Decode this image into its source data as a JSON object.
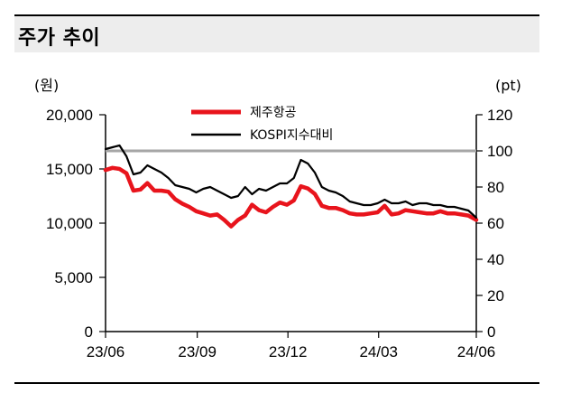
{
  "title": "주가 추이",
  "chart_data": {
    "type": "line",
    "left_axis": {
      "unit": "(원)",
      "ylim": [
        0,
        20000
      ],
      "ticks": [
        "0",
        "5,000",
        "10,000",
        "15,000",
        "20,000"
      ],
      "tick_values": [
        0,
        5000,
        10000,
        15000,
        20000
      ]
    },
    "right_axis": {
      "unit": "(pt)",
      "ylim": [
        0,
        120
      ],
      "ticks": [
        "0",
        "20",
        "40",
        "60",
        "80",
        "100",
        "120"
      ],
      "tick_values": [
        0,
        20,
        40,
        60,
        80,
        100,
        120
      ]
    },
    "x_ticks": [
      "23/06",
      "23/09",
      "23/12",
      "24/03",
      "24/06"
    ],
    "x_tick_values": [
      "2023-06",
      "2023-09",
      "2023-12",
      "2024-03",
      "2024-06"
    ],
    "reference_line": {
      "axis": "right",
      "value": 100,
      "color": "#a6a6a6"
    },
    "legend": {
      "position": "top-center"
    },
    "series": [
      {
        "name": "제주항공",
        "axis": "left",
        "color": "#e8141c",
        "x": [
          "2023-06-01",
          "2023-06-08",
          "2023-06-15",
          "2023-06-22",
          "2023-06-29",
          "2023-07-06",
          "2023-07-13",
          "2023-07-20",
          "2023-07-27",
          "2023-08-03",
          "2023-08-10",
          "2023-08-17",
          "2023-08-24",
          "2023-08-31",
          "2023-09-07",
          "2023-09-14",
          "2023-09-21",
          "2023-09-28",
          "2023-10-05",
          "2023-10-12",
          "2023-10-19",
          "2023-10-26",
          "2023-11-02",
          "2023-11-09",
          "2023-11-16",
          "2023-11-23",
          "2023-11-30",
          "2023-12-07",
          "2023-12-14",
          "2023-12-21",
          "2023-12-28",
          "2024-01-04",
          "2024-01-11",
          "2024-01-18",
          "2024-01-25",
          "2024-02-01",
          "2024-02-08",
          "2024-02-15",
          "2024-02-22",
          "2024-02-29",
          "2024-03-07",
          "2024-03-14",
          "2024-03-21",
          "2024-03-28",
          "2024-04-04",
          "2024-04-11",
          "2024-04-18",
          "2024-04-25",
          "2024-05-02",
          "2024-05-09",
          "2024-05-16",
          "2024-05-23",
          "2024-05-30",
          "2024-06-07"
        ],
        "values": [
          14900,
          15100,
          15000,
          14600,
          13000,
          13100,
          13700,
          13000,
          13000,
          12900,
          12200,
          11800,
          11500,
          11100,
          10900,
          10700,
          10800,
          10300,
          9700,
          10300,
          10700,
          11700,
          11200,
          11000,
          11500,
          11900,
          11700,
          12100,
          13400,
          13200,
          12700,
          11600,
          11400,
          11400,
          11200,
          10900,
          10800,
          10800,
          10900,
          11000,
          11600,
          10800,
          10900,
          11200,
          11100,
          11000,
          10900,
          10900,
          11100,
          10900,
          10900,
          10800,
          10700,
          10300
        ]
      },
      {
        "name": "KOSPI지수대비",
        "axis": "right",
        "color": "#000000",
        "x": [
          "2023-06-01",
          "2023-06-08",
          "2023-06-15",
          "2023-06-22",
          "2023-06-29",
          "2023-07-06",
          "2023-07-13",
          "2023-07-20",
          "2023-07-27",
          "2023-08-03",
          "2023-08-10",
          "2023-08-17",
          "2023-08-24",
          "2023-08-31",
          "2023-09-07",
          "2023-09-14",
          "2023-09-21",
          "2023-09-28",
          "2023-10-05",
          "2023-10-12",
          "2023-10-19",
          "2023-10-26",
          "2023-11-02",
          "2023-11-09",
          "2023-11-16",
          "2023-11-23",
          "2023-11-30",
          "2023-12-07",
          "2023-12-14",
          "2023-12-21",
          "2023-12-28",
          "2024-01-04",
          "2024-01-11",
          "2024-01-18",
          "2024-01-25",
          "2024-02-01",
          "2024-02-08",
          "2024-02-15",
          "2024-02-22",
          "2024-02-29",
          "2024-03-07",
          "2024-03-14",
          "2024-03-21",
          "2024-03-28",
          "2024-04-04",
          "2024-04-11",
          "2024-04-18",
          "2024-04-25",
          "2024-05-02",
          "2024-05-09",
          "2024-05-16",
          "2024-05-23",
          "2024-05-30",
          "2024-06-07"
        ],
        "values": [
          101,
          102,
          103,
          97,
          87,
          88,
          92,
          90,
          88,
          85,
          81,
          80,
          79,
          77,
          79,
          80,
          78,
          76,
          74,
          75,
          80,
          76,
          79,
          78,
          80,
          82,
          82,
          85,
          95,
          93,
          88,
          80,
          78,
          77,
          75,
          72,
          71,
          70,
          70,
          71,
          73,
          71,
          71,
          72,
          70,
          71,
          71,
          70,
          70,
          69,
          69,
          68,
          67,
          63
        ]
      }
    ]
  }
}
